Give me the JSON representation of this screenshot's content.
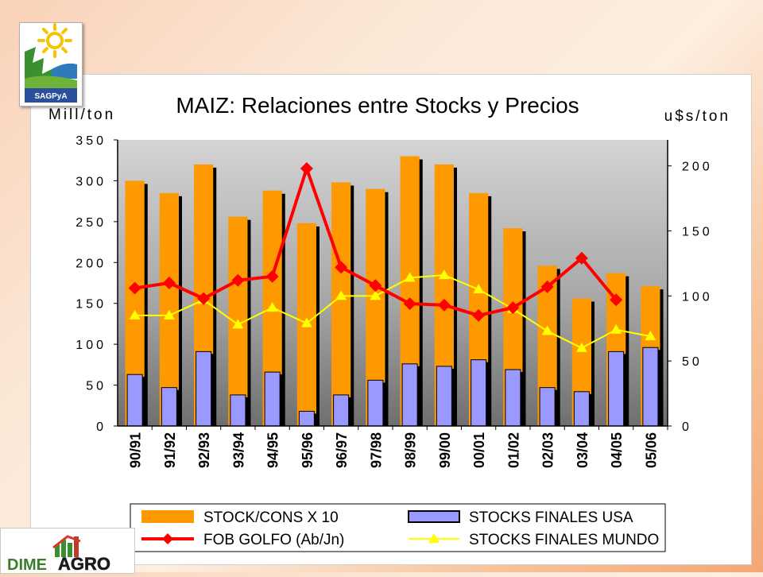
{
  "logos": {
    "top_text": "SAGPyA",
    "bottom_text_1": "DIME",
    "bottom_text_2": "AGRO"
  },
  "chart_data": {
    "type": "bar",
    "title": "MAIZ: Relaciones entre Stocks y Precios",
    "ylabel": "Mill/ton",
    "y2label": "u$s/ton",
    "ylim": [
      0,
      350
    ],
    "y2lim": [
      0,
      220
    ],
    "yticks": [
      "0",
      "50",
      "100",
      "150",
      "200",
      "250",
      "300",
      "350"
    ],
    "y2ticks": [
      "0",
      "50",
      "100",
      "150",
      "200"
    ],
    "grid": false,
    "legend_position": "bottom",
    "categories": [
      "90/91",
      "91/92",
      "92/93",
      "93/94",
      "94/95",
      "95/96",
      "96/97",
      "97/98",
      "98/99",
      "99/00",
      "00/01",
      "01/02",
      "02/03",
      "03/04",
      "04/05",
      "05/06"
    ],
    "series": [
      {
        "name": "STOCK/CONS X 10",
        "type": "bar",
        "axis": "left",
        "color": "#ff9900",
        "values": [
          300,
          285,
          320,
          256,
          288,
          248,
          298,
          290,
          330,
          320,
          285,
          242,
          196,
          156,
          187,
          171
        ]
      },
      {
        "name": "STOCKS FINALES USA",
        "type": "bar",
        "axis": "left",
        "color": "#9999ff",
        "values": [
          63,
          47,
          91,
          38,
          66,
          18,
          38,
          56,
          76,
          73,
          81,
          69,
          47,
          42,
          91,
          96
        ]
      },
      {
        "name": "FOB GOLFO (Ab/Jn)",
        "type": "line",
        "axis": "right",
        "color": "#ff0000",
        "marker": "diamond",
        "values": [
          106,
          110,
          98,
          112,
          115,
          198,
          122,
          108,
          94,
          93,
          85,
          91,
          107,
          129,
          97,
          null
        ]
      },
      {
        "name": "STOCKS FINALES MUNDO",
        "type": "line",
        "axis": "right",
        "color": "#ffff00",
        "marker": "triangle",
        "values": [
          85,
          85,
          97,
          78,
          91,
          79,
          100,
          100,
          114,
          116,
          105,
          90,
          73,
          60,
          74,
          69
        ]
      }
    ]
  }
}
